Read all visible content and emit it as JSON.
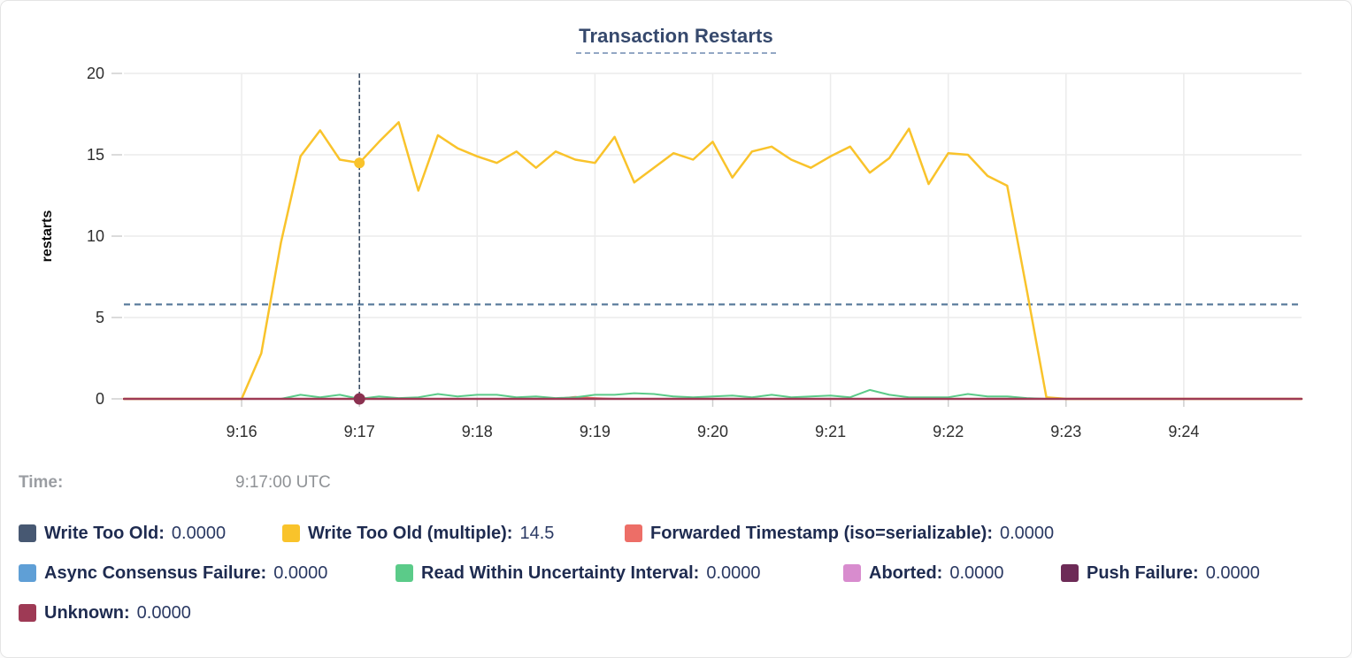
{
  "chart_data": {
    "type": "line",
    "title": "Transaction Restarts",
    "ylabel": "restarts",
    "xlabel": "",
    "ylim": [
      0,
      20
    ],
    "yticks": [
      0,
      5,
      10,
      15,
      20
    ],
    "xticks": [
      "9:16",
      "9:17",
      "9:18",
      "9:19",
      "9:20",
      "9:21",
      "9:22",
      "9:23",
      "9:24"
    ],
    "x_range": [
      "9:15:00",
      "9:25:00"
    ],
    "grid": true,
    "legend_position": "bottom",
    "average_line": {
      "value": 5.8,
      "color": "#5e7f9e",
      "style": "dashed"
    },
    "crosshair": {
      "time": "9:17:00",
      "color": "#3c4f66",
      "dots": [
        {
          "series": "Write Too Old (multiple)",
          "value": 14.5,
          "color": "#f9c32b",
          "radius": 6
        },
        {
          "series": "Unknown",
          "value": 0,
          "color": "#8b3150",
          "radius": 6.5
        }
      ]
    },
    "series": [
      {
        "name": "Write Too Old",
        "color": "#475872",
        "width": 2,
        "points": [
          [
            "9:15:00",
            0
          ],
          [
            "9:25:00",
            0
          ]
        ]
      },
      {
        "name": "Write Too Old (multiple)",
        "color": "#f9c32b",
        "width": 2.5,
        "points": [
          [
            "9:15:00",
            0
          ],
          [
            "9:16:00",
            0
          ],
          [
            "9:16:10",
            2.8
          ],
          [
            "9:16:20",
            9.6
          ],
          [
            "9:16:30",
            14.9
          ],
          [
            "9:16:40",
            16.5
          ],
          [
            "9:16:50",
            14.7
          ],
          [
            "9:17:00",
            14.5
          ],
          [
            "9:17:10",
            15.8
          ],
          [
            "9:17:20",
            17.0
          ],
          [
            "9:17:30",
            12.8
          ],
          [
            "9:17:40",
            16.2
          ],
          [
            "9:17:50",
            15.4
          ],
          [
            "9:18:00",
            14.9
          ],
          [
            "9:18:10",
            14.5
          ],
          [
            "9:18:20",
            15.2
          ],
          [
            "9:18:30",
            14.2
          ],
          [
            "9:18:40",
            15.2
          ],
          [
            "9:18:50",
            14.7
          ],
          [
            "9:19:00",
            14.5
          ],
          [
            "9:19:10",
            16.1
          ],
          [
            "9:19:20",
            13.3
          ],
          [
            "9:19:30",
            14.2
          ],
          [
            "9:19:40",
            15.1
          ],
          [
            "9:19:50",
            14.7
          ],
          [
            "9:20:00",
            15.8
          ],
          [
            "9:20:10",
            13.6
          ],
          [
            "9:20:20",
            15.2
          ],
          [
            "9:20:30",
            15.5
          ],
          [
            "9:20:40",
            14.7
          ],
          [
            "9:20:50",
            14.2
          ],
          [
            "9:21:00",
            14.9
          ],
          [
            "9:21:10",
            15.5
          ],
          [
            "9:21:20",
            13.9
          ],
          [
            "9:21:30",
            14.8
          ],
          [
            "9:21:40",
            16.6
          ],
          [
            "9:21:50",
            13.2
          ],
          [
            "9:22:00",
            15.1
          ],
          [
            "9:22:10",
            15.0
          ],
          [
            "9:22:20",
            13.7
          ],
          [
            "9:22:30",
            13.1
          ],
          [
            "9:22:40",
            6.7
          ],
          [
            "9:22:50",
            0.1
          ],
          [
            "9:23:00",
            0
          ],
          [
            "9:25:00",
            0
          ]
        ]
      },
      {
        "name": "Forwarded Timestamp (iso=serializable)",
        "color": "#ed6e67",
        "width": 2,
        "points": [
          [
            "9:15:00",
            0
          ],
          [
            "9:18:40",
            0
          ],
          [
            "9:18:50",
            0.12
          ],
          [
            "9:19:00",
            0.05
          ],
          [
            "9:19:10",
            0
          ],
          [
            "9:25:00",
            0
          ]
        ]
      },
      {
        "name": "Async Consensus Failure",
        "color": "#5f9fd6",
        "width": 2,
        "points": [
          [
            "9:15:00",
            0
          ],
          [
            "9:25:00",
            0
          ]
        ]
      },
      {
        "name": "Read Within Uncertainty Interval",
        "color": "#5bcb89",
        "width": 2,
        "points": [
          [
            "9:15:00",
            0
          ],
          [
            "9:16:20",
            0
          ],
          [
            "9:16:30",
            0.25
          ],
          [
            "9:16:40",
            0.1
          ],
          [
            "9:16:50",
            0.25
          ],
          [
            "9:17:00",
            0
          ],
          [
            "9:17:10",
            0.15
          ],
          [
            "9:17:20",
            0.05
          ],
          [
            "9:17:30",
            0.1
          ],
          [
            "9:17:40",
            0.3
          ],
          [
            "9:17:50",
            0.15
          ],
          [
            "9:18:00",
            0.25
          ],
          [
            "9:18:10",
            0.25
          ],
          [
            "9:18:20",
            0.1
          ],
          [
            "9:18:30",
            0.15
          ],
          [
            "9:18:40",
            0.05
          ],
          [
            "9:18:50",
            0.1
          ],
          [
            "9:19:00",
            0.25
          ],
          [
            "9:19:10",
            0.25
          ],
          [
            "9:19:20",
            0.35
          ],
          [
            "9:19:30",
            0.3
          ],
          [
            "9:19:40",
            0.15
          ],
          [
            "9:19:50",
            0.1
          ],
          [
            "9:20:00",
            0.15
          ],
          [
            "9:20:10",
            0.2
          ],
          [
            "9:20:20",
            0.1
          ],
          [
            "9:20:30",
            0.25
          ],
          [
            "9:20:40",
            0.1
          ],
          [
            "9:21:00",
            0.2
          ],
          [
            "9:21:10",
            0.1
          ],
          [
            "9:21:20",
            0.55
          ],
          [
            "9:21:30",
            0.25
          ],
          [
            "9:21:40",
            0.1
          ],
          [
            "9:21:50",
            0.1
          ],
          [
            "9:22:00",
            0.1
          ],
          [
            "9:22:10",
            0.3
          ],
          [
            "9:22:20",
            0.15
          ],
          [
            "9:22:30",
            0.15
          ],
          [
            "9:22:40",
            0.05
          ],
          [
            "9:22:50",
            0
          ],
          [
            "9:25:00",
            0
          ]
        ]
      },
      {
        "name": "Aborted",
        "color": "#d88cce",
        "width": 2,
        "points": [
          [
            "9:15:00",
            0
          ],
          [
            "9:25:00",
            0
          ]
        ]
      },
      {
        "name": "Push Failure",
        "color": "#6d2b57",
        "width": 2,
        "points": [
          [
            "9:15:00",
            0
          ],
          [
            "9:25:00",
            0
          ]
        ]
      },
      {
        "name": "Unknown",
        "color": "#9e3a55",
        "width": 2.5,
        "points": [
          [
            "9:15:00",
            0
          ],
          [
            "9:25:00",
            0
          ]
        ]
      }
    ]
  },
  "tooltip": {
    "time_label": "Time:",
    "time_value": "9:17:00 UTC"
  },
  "legend_rows": [
    [
      {
        "label": "Write Too Old",
        "value": "0.0000",
        "color": "#475872"
      },
      {
        "label": "Write Too Old (multiple)",
        "value": "14.5",
        "color": "#f9c32b"
      },
      {
        "label": "Forwarded Timestamp (iso=serializable)",
        "value": "0.0000",
        "color": "#ed6e67"
      }
    ],
    [
      {
        "label": "Async Consensus Failure",
        "value": "0.0000",
        "color": "#5f9fd6"
      },
      {
        "label": "Read Within Uncertainty Interval",
        "value": "0.0000",
        "color": "#5bcb89"
      },
      {
        "label": "Aborted",
        "value": "0.0000",
        "color": "#d88cce"
      },
      {
        "label": "Push Failure",
        "value": "0.0000",
        "color": "#6d2b57"
      }
    ],
    [
      {
        "label": "Unknown",
        "value": "0.0000",
        "color": "#9e3a55"
      }
    ]
  ]
}
